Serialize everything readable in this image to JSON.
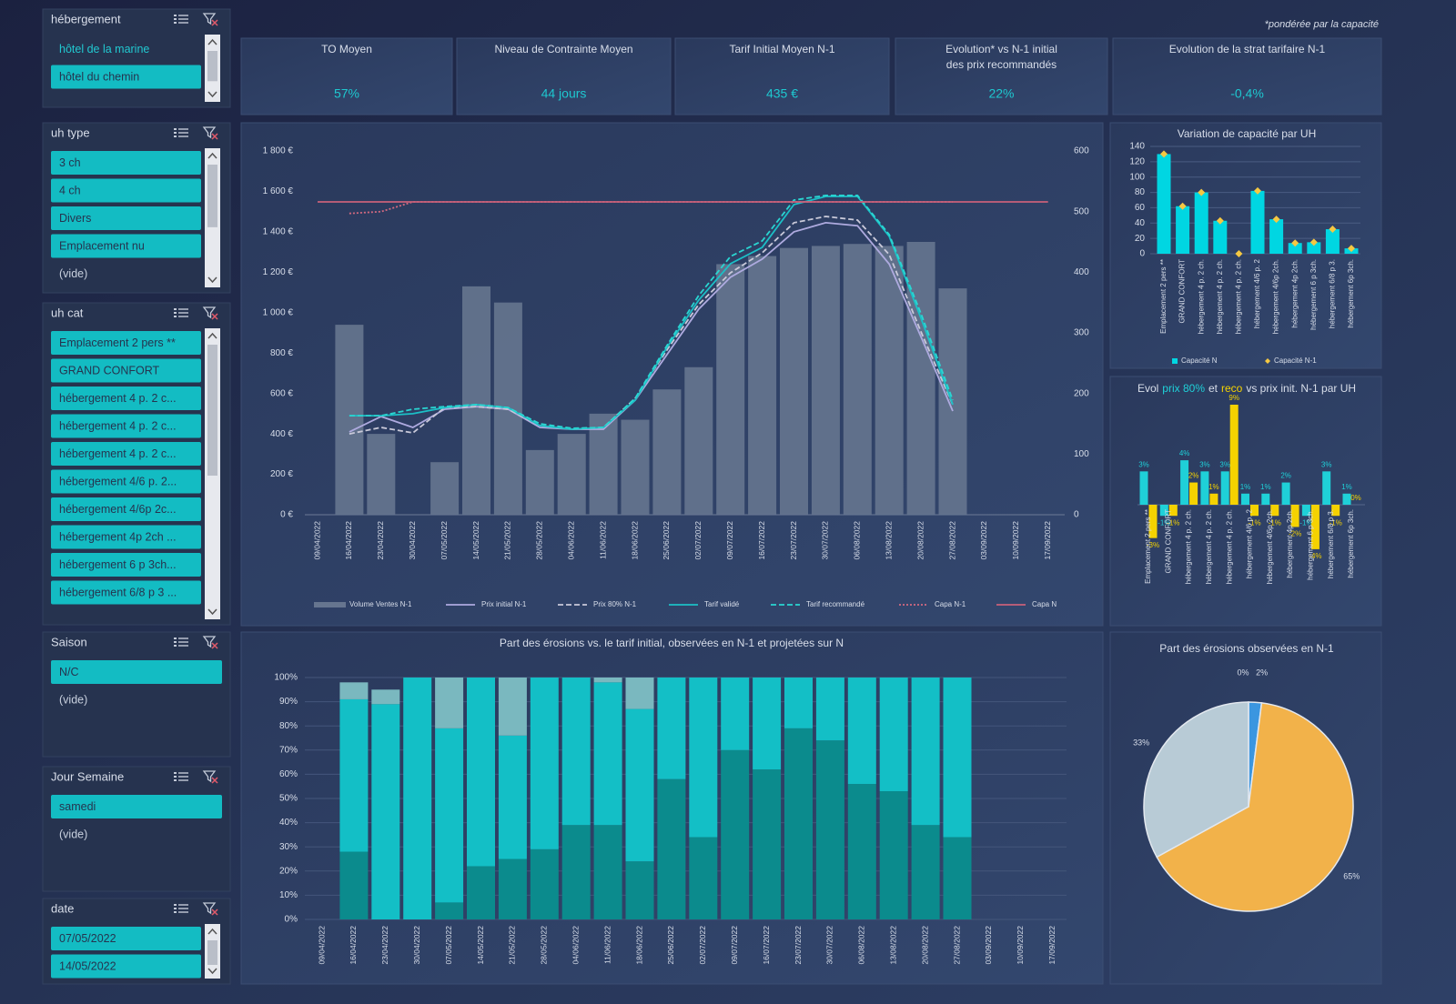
{
  "note": "*pondérée par la capacité",
  "slicers": [
    {
      "title": "hébergement",
      "items": [
        "hôtel de la marine",
        "hôtel du chemin"
      ],
      "selected": [
        false,
        true
      ]
    },
    {
      "title": "uh type",
      "items": [
        "3 ch",
        "4 ch",
        "Divers",
        "Emplacement nu",
        "(vide)"
      ],
      "selected": [
        true,
        true,
        true,
        true,
        false
      ]
    },
    {
      "title": "uh cat",
      "items": [
        "Emplacement 2 pers **",
        "GRAND CONFORT",
        "hébergement 4 p. 2 c...",
        "hébergement 4 p. 2 c...",
        "hébergement 4 p. 2 c...",
        "hébergement 4/6 p. 2...",
        "hébergement 4/6p 2c...",
        "hébergement 4p 2ch ...",
        "hébergement 6 p 3ch...",
        "hébergement 6/8 p 3 ..."
      ],
      "selected": [
        true,
        true,
        true,
        true,
        true,
        true,
        true,
        true,
        true,
        true
      ]
    },
    {
      "title": "Saison",
      "items": [
        "N/C",
        "(vide)"
      ],
      "selected": [
        true,
        false
      ]
    },
    {
      "title": "Jour Semaine",
      "items": [
        "samedi",
        "(vide)"
      ],
      "selected": [
        true,
        false
      ]
    },
    {
      "title": "date",
      "items": [
        "07/05/2022",
        "14/05/2022"
      ],
      "selected": [
        true,
        true
      ]
    }
  ],
  "kpis": [
    {
      "label": [
        "TO Moyen"
      ],
      "value": "57%"
    },
    {
      "label": [
        "Niveau de Contrainte Moyen"
      ],
      "value": "44 jours"
    },
    {
      "label": [
        "Tarif Initial Moyen N-1"
      ],
      "value": "435 €"
    },
    {
      "label": [
        "Evolution* vs N-1 initial",
        "des prix recommandés"
      ],
      "value": "22%"
    },
    {
      "label": [
        "Evolution de la strat tarifaire N-1"
      ],
      "value": "-0,4%"
    }
  ],
  "chart_data": [
    {
      "type": "combo",
      "categories": [
        "09/04/2022",
        "16/04/2022",
        "23/04/2022",
        "30/04/2022",
        "07/05/2022",
        "14/05/2022",
        "21/05/2022",
        "28/05/2022",
        "04/06/2022",
        "11/06/2022",
        "18/06/2022",
        "25/06/2022",
        "02/07/2022",
        "09/07/2022",
        "16/07/2022",
        "23/07/2022",
        "30/07/2022",
        "06/08/2022",
        "13/08/2022",
        "20/08/2022",
        "27/08/2022",
        "03/09/2022",
        "10/09/2022",
        "17/09/2022"
      ],
      "ylim": [
        0,
        1800
      ],
      "yticks": [
        {
          "value": 0,
          "label": "0 €"
        },
        {
          "value": 200,
          "label": "200 €"
        },
        {
          "value": 400,
          "label": "400 €"
        },
        {
          "value": 600,
          "label": "600 €"
        },
        {
          "value": 800,
          "label": "800 €"
        },
        {
          "value": 1000,
          "label": "1 000 €"
        },
        {
          "value": 1200,
          "label": "1 200 €"
        },
        {
          "value": 1400,
          "label": "1 400 €"
        },
        {
          "value": 1600,
          "label": "1 600 €"
        },
        {
          "value": 1800,
          "label": "1 800 €"
        }
      ],
      "y2lim": [
        0,
        600
      ],
      "y2ticks": [
        0,
        100,
        200,
        300,
        400,
        500,
        600
      ],
      "grid": false,
      "series": [
        {
          "name": "Volume Ventes N-1",
          "type": "bar",
          "color": "#66758f",
          "values": [
            null,
            940,
            400,
            null,
            260,
            1130,
            1050,
            320,
            400,
            500,
            470,
            620,
            730,
            1240,
            1280,
            1320,
            1330,
            1340,
            1330,
            1350,
            1120,
            null,
            null,
            null
          ]
        },
        {
          "name": "Prix initial N-1",
          "type": "line",
          "dash": "solid",
          "color": "#aeaadf",
          "values": [
            null,
            410,
            486,
            432,
            522,
            535,
            522,
            432,
            423,
            423,
            567,
            792,
            1017,
            1175,
            1265,
            1400,
            1445,
            1430,
            1240,
            880,
            513,
            null,
            null,
            null
          ]
        },
        {
          "name": "Prix 80% N-1",
          "type": "line",
          "dash": "dashed",
          "color": "#c9c9d9",
          "values": [
            null,
            400,
            432,
            405,
            530,
            535,
            522,
            441,
            423,
            432,
            576,
            815,
            1040,
            1197,
            1296,
            1445,
            1476,
            1458,
            1287,
            905,
            545,
            null,
            null,
            null
          ]
        },
        {
          "name": "Tarif validé",
          "type": "line",
          "dash": "solid",
          "color": "#1cbfc6",
          "values": [
            null,
            490,
            490,
            500,
            530,
            545,
            530,
            441,
            423,
            432,
            567,
            828,
            1062,
            1242,
            1323,
            1535,
            1575,
            1575,
            1377,
            972,
            545,
            null,
            null,
            null
          ]
        },
        {
          "name": "Tarif recommandé",
          "type": "line",
          "dash": "dashed",
          "color": "#2ad6d2",
          "values": [
            null,
            490,
            490,
            522,
            535,
            545,
            530,
            450,
            428,
            432,
            576,
            837,
            1085,
            1278,
            1355,
            1557,
            1580,
            1580,
            1386,
            995,
            567,
            null,
            null,
            null
          ]
        },
        {
          "name": "Capa N-1",
          "type": "line",
          "dash": "dotted",
          "axis": "y2",
          "color": "#d46a80",
          "values": [
            null,
            497,
            500,
            516,
            516,
            516,
            516,
            516,
            516,
            516,
            516,
            516,
            516,
            516,
            516,
            516,
            516,
            516,
            516,
            516,
            516,
            null,
            null,
            null
          ]
        },
        {
          "name": "Capa N",
          "type": "line",
          "dash": "solid",
          "axis": "y2",
          "color": "#c9617a",
          "values": [
            516,
            516,
            516,
            516,
            516,
            516,
            516,
            516,
            516,
            516,
            516,
            516,
            516,
            516,
            516,
            516,
            516,
            516,
            516,
            516,
            516,
            516,
            516,
            516
          ]
        }
      ]
    },
    {
      "type": "bar",
      "title": "Variation de capacité par UH",
      "categories": [
        "Emplacement 2 pers **",
        "GRAND CONFORT",
        "hébergement 4 p. 2 ch.",
        "hébergement 4 p. 2 ch.",
        "hébergement 4 p. 2 ch.",
        "hébergement 4/6 p. 2",
        "hébergement 4/6p 2ch.",
        "hébergement 4p 2ch.",
        "hébergement 6 p 3ch.",
        "hébergement 6/8 p 3.",
        "hébergement 6p 3ch."
      ],
      "ylim": [
        0,
        140
      ],
      "yticks": [
        0,
        20,
        40,
        60,
        80,
        100,
        120,
        140
      ],
      "grid": true,
      "series": [
        {
          "name": "Capacité N",
          "type": "bar",
          "color": "#00d6e2",
          "values": [
            130,
            62,
            80,
            43,
            0,
            82,
            45,
            14,
            15,
            32,
            7
          ]
        },
        {
          "name": "Capacité N-1",
          "type": "marker",
          "color": "#f5c842",
          "values": [
            130,
            62,
            80,
            43,
            0,
            82,
            45,
            14,
            15,
            32,
            7
          ]
        }
      ]
    },
    {
      "type": "diverging_bar",
      "title_parts": [
        {
          "text": "Evol"
        },
        {
          "text": "prix 80%",
          "color": "#1fd0d8"
        },
        {
          "text": "et"
        },
        {
          "text": "reco",
          "color": "#f5d200"
        },
        {
          "text": "vs prix init. N-1  par UH"
        }
      ],
      "categories": [
        "Emplacement 2 pers **",
        "GRAND CONFORT",
        "hébergement 4 p. 2 ch.",
        "hébergement 4 p. 2 ch.",
        "hébergement 4 p. 2 ch.",
        "hébergement 4/6 p. 2",
        "hébergement 4/6p 2ch.",
        "hébergement 4p 2ch.",
        "hébergement 6 p 3ch.",
        "hébergement 6/8 p 3.",
        "hébergement 6p 3ch."
      ],
      "series": [
        {
          "color": "#1fd0d8",
          "values": [
            3,
            -1,
            4,
            3,
            3,
            1,
            1,
            2,
            -1,
            3,
            1
          ],
          "value_labels": [
            "3%",
            "-1%",
            "4%",
            "3%",
            "3%",
            "1%",
            "1%",
            "2%",
            "-1%",
            "3%",
            "1%"
          ]
        },
        {
          "color": "#f5d200",
          "values": [
            -3,
            -1,
            2,
            1,
            9,
            -1,
            -1,
            -2,
            -4,
            -1,
            0
          ],
          "value_labels": [
            "-3%",
            "-1%",
            "2%",
            "1%",
            "9%",
            "-1%",
            "-1%",
            "-2%",
            "-4%",
            "-1%",
            "0%"
          ]
        }
      ]
    },
    {
      "type": "stacked_bar",
      "title": "Part des érosions vs. le tarif initial, observées en N-1 et projetées sur N",
      "categories": [
        "09/04/2022",
        "16/04/2022",
        "23/04/2022",
        "30/04/2022",
        "07/05/2022",
        "14/05/2022",
        "21/05/2022",
        "28/05/2022",
        "04/06/2022",
        "11/06/2022",
        "18/06/2022",
        "25/06/2022",
        "02/07/2022",
        "09/07/2022",
        "16/07/2022",
        "23/07/2022",
        "30/07/2022",
        "06/08/2022",
        "13/08/2022",
        "20/08/2022",
        "27/08/2022",
        "03/09/2022",
        "10/09/2022",
        "17/09/2022"
      ],
      "ylim": [
        0,
        100
      ],
      "yticks": [
        {
          "value": 0,
          "label": "0%"
        },
        {
          "value": 10,
          "label": "10%"
        },
        {
          "value": 20,
          "label": "20%"
        },
        {
          "value": 30,
          "label": "30%"
        },
        {
          "value": 40,
          "label": "40%"
        },
        {
          "value": 50,
          "label": "50%"
        },
        {
          "value": 60,
          "label": "60%"
        },
        {
          "value": 70,
          "label": "70%"
        },
        {
          "value": 80,
          "label": "80%"
        },
        {
          "value": 90,
          "label": "90%"
        },
        {
          "value": 100,
          "label": "100%"
        }
      ],
      "grid": true,
      "series": [
        {
          "color": "#0b8b8d",
          "values": [
            null,
            28,
            0,
            0,
            7,
            22,
            25,
            29,
            39,
            39,
            24,
            58,
            34,
            70,
            62,
            79,
            74,
            56,
            53,
            39,
            34,
            null,
            null,
            null
          ]
        },
        {
          "color": "#13bfc6",
          "values": [
            null,
            63,
            89,
            100,
            72,
            78,
            51,
            71,
            61,
            59,
            63,
            42,
            66,
            30,
            38,
            21,
            26,
            44,
            47,
            61,
            66,
            null,
            null,
            null
          ]
        },
        {
          "color": "#7ab8bf",
          "values": [
            null,
            7,
            6,
            0,
            21,
            0,
            24,
            0,
            0,
            2,
            13,
            0,
            0,
            0,
            0,
            0,
            0,
            0,
            0,
            0,
            0,
            null,
            null,
            null
          ]
        }
      ]
    },
    {
      "type": "pie",
      "title": "Part des érosions observées en N-1",
      "values": [
        0,
        2,
        65,
        33
      ],
      "value_labels": [
        "0%",
        "2%",
        "65%",
        "33%"
      ],
      "colors": [
        "#2d6fb8",
        "#3b96e0",
        "#f2b24a",
        "#b8cbd6"
      ]
    }
  ]
}
